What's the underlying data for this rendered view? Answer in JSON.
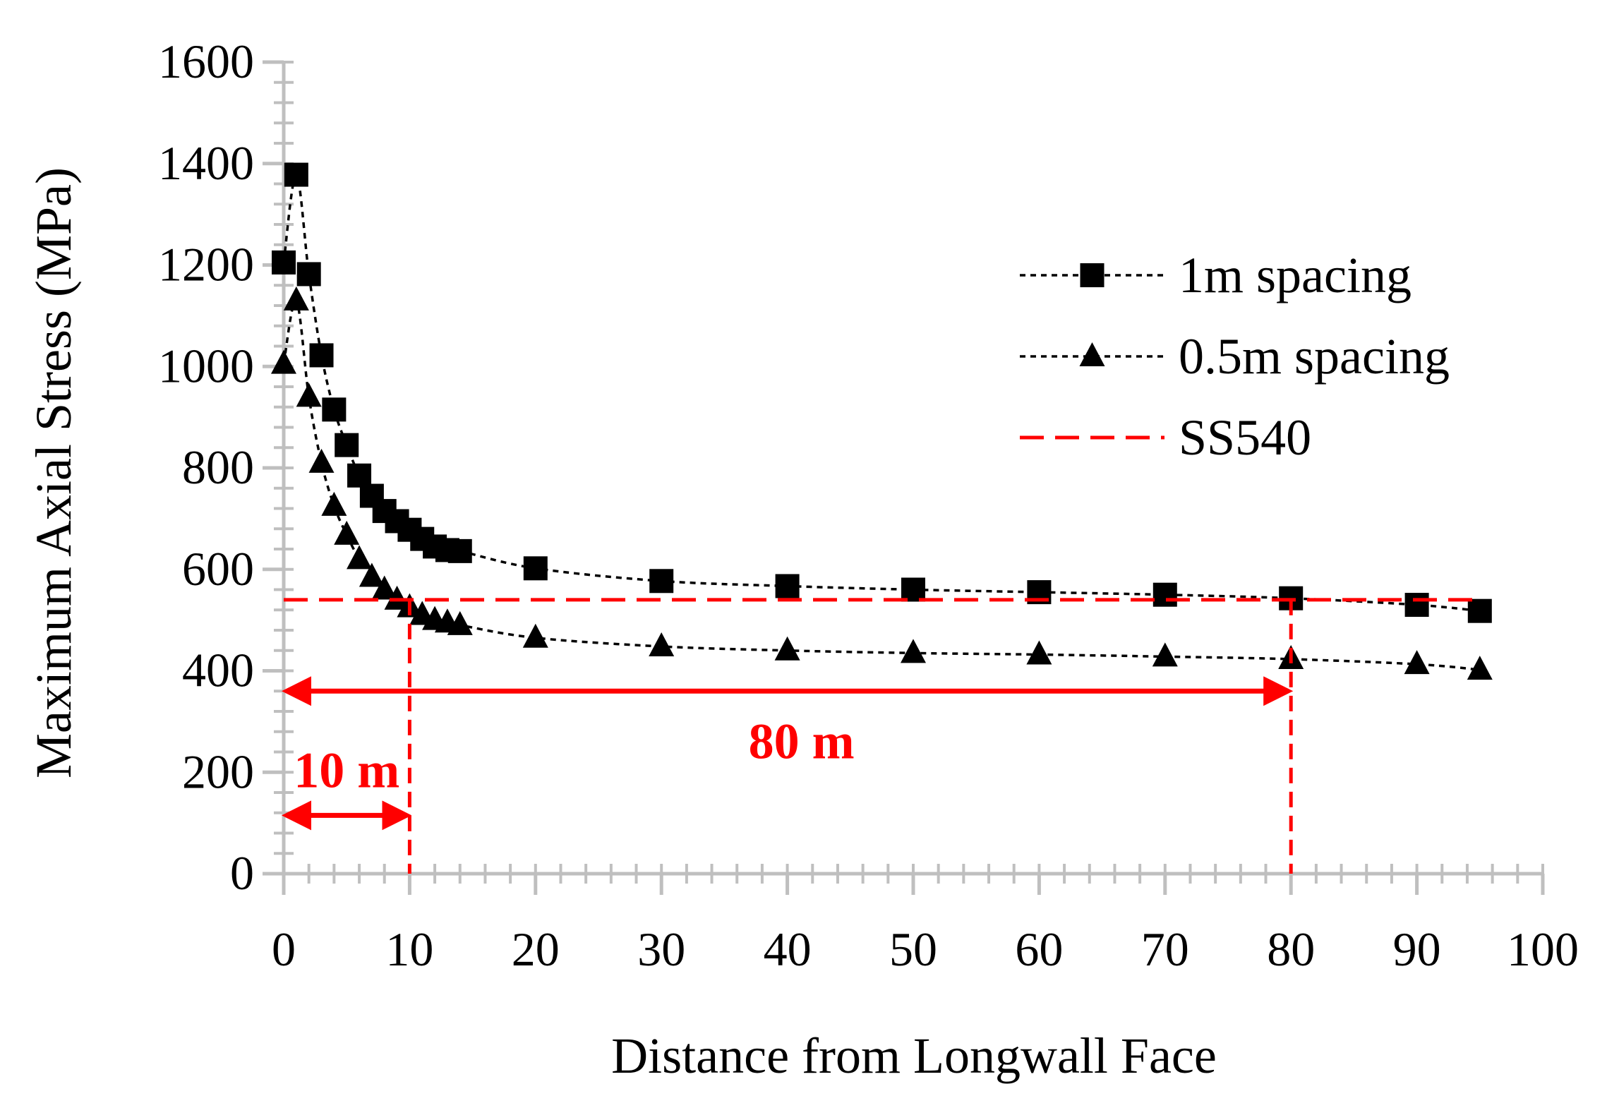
{
  "chart_data": {
    "type": "line",
    "title": "",
    "xlabel": "Distance from Longwall Face",
    "ylabel": "Maximum Axial Stress (MPa)",
    "xlim": [
      0,
      100
    ],
    "ylim": [
      0,
      1600
    ],
    "x_ticks": [
      "0",
      "10",
      "20",
      "30",
      "40",
      "50",
      "60",
      "70",
      "80",
      "90",
      "100"
    ],
    "y_ticks": [
      "0",
      "200",
      "400",
      "600",
      "800",
      "1000",
      "1200",
      "1400",
      "1600"
    ],
    "x_minor_step": 2,
    "y_minor_step": 40,
    "grid": false,
    "legend_position": "top-right",
    "series": [
      {
        "name": "1m spacing",
        "marker": "square",
        "line_style": "dotted",
        "color": "#000000",
        "x": [
          0,
          1,
          2,
          3,
          4,
          5,
          6,
          7,
          8,
          9,
          10,
          11,
          12,
          13,
          14,
          20,
          30,
          40,
          50,
          60,
          70,
          80,
          90,
          95
        ],
        "y": [
          1205,
          1378,
          1182,
          1022,
          915,
          845,
          785,
          745,
          715,
          695,
          678,
          660,
          645,
          638,
          636,
          602,
          577,
          567,
          560,
          555,
          550,
          543,
          530,
          518
        ]
      },
      {
        "name": "0.5m spacing",
        "marker": "triangle",
        "line_style": "dotted",
        "color": "#000000",
        "x": [
          0,
          1,
          2,
          3,
          4,
          5,
          6,
          7,
          8,
          9,
          10,
          11,
          12,
          13,
          14,
          20,
          30,
          40,
          50,
          60,
          70,
          80,
          90,
          95
        ],
        "y": [
          1005,
          1130,
          940,
          810,
          725,
          668,
          620,
          585,
          560,
          540,
          525,
          510,
          500,
          495,
          490,
          465,
          448,
          440,
          435,
          432,
          428,
          423,
          413,
          402
        ]
      },
      {
        "name": "SS540",
        "marker": "none",
        "line_style": "dashed",
        "color": "#ff0000",
        "x": [
          0,
          95
        ],
        "y": [
          540,
          540
        ]
      }
    ],
    "annotations": [
      {
        "label": "10 m",
        "from_x": 0,
        "to_x": 10,
        "arrow_y": 115,
        "vline_x": 10,
        "vline_top_y": 540,
        "color": "#ff0000"
      },
      {
        "label": "80 m",
        "from_x": 0,
        "to_x": 80,
        "arrow_y": 360,
        "vline_x": 80,
        "vline_top_y": 540,
        "color": "#ff0000"
      }
    ]
  }
}
